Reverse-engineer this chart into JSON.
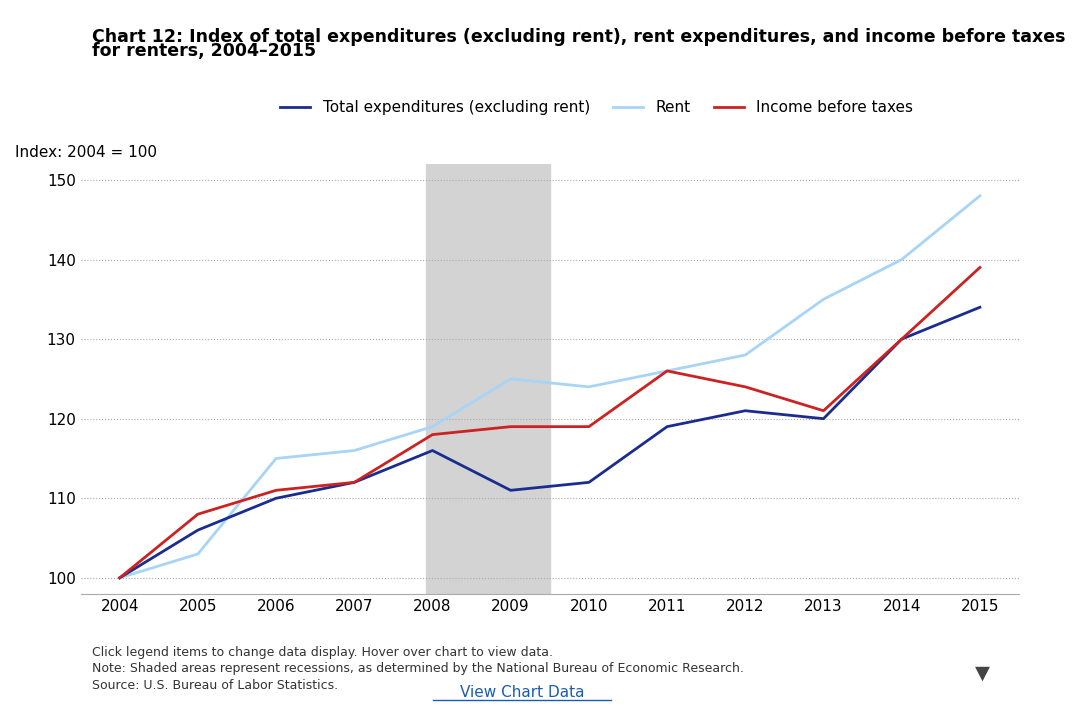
{
  "title_line1": "Chart 12: Index of total expenditures (excluding rent), rent expenditures, and income before taxes",
  "title_line2": "for renters, 2004–2015",
  "ylabel": "Index: 2004 = 100",
  "years": [
    2004,
    2005,
    2006,
    2007,
    2008,
    2009,
    2010,
    2011,
    2012,
    2013,
    2014,
    2015
  ],
  "total_expenditures": [
    100,
    106,
    110,
    112,
    116,
    111,
    112,
    119,
    121,
    120,
    130,
    134
  ],
  "rent": [
    100,
    103,
    115,
    116,
    119,
    125,
    124,
    126,
    128,
    135,
    140,
    148
  ],
  "income_before_taxes": [
    100,
    108,
    111,
    112,
    118,
    119,
    119,
    126,
    124,
    121,
    130,
    139
  ],
  "line_colors": {
    "total_expenditures": "#1a2d8f",
    "rent": "#a8d4f5",
    "income_before_taxes": "#cc2222"
  },
  "recession_start": 2007.92,
  "recession_end": 2009.5,
  "recession_color": "#d3d3d3",
  "ylim": [
    98,
    152
  ],
  "yticks": [
    100,
    110,
    120,
    130,
    140,
    150
  ],
  "xlim": [
    2003.5,
    2015.5
  ],
  "grid_color": "#aaaaaa",
  "background_color": "#ffffff",
  "legend_labels": [
    "Total expenditures (excluding rent)",
    "Rent",
    "Income before taxes"
  ],
  "footnote1": "Click legend items to change data display. Hover over chart to view data.",
  "footnote2": "Note: Shaded areas represent recessions, as determined by the National Bureau of Economic Research.",
  "footnote3": "Source: U.S. Bureau of Labor Statistics.",
  "view_chart_link": "View Chart Data"
}
